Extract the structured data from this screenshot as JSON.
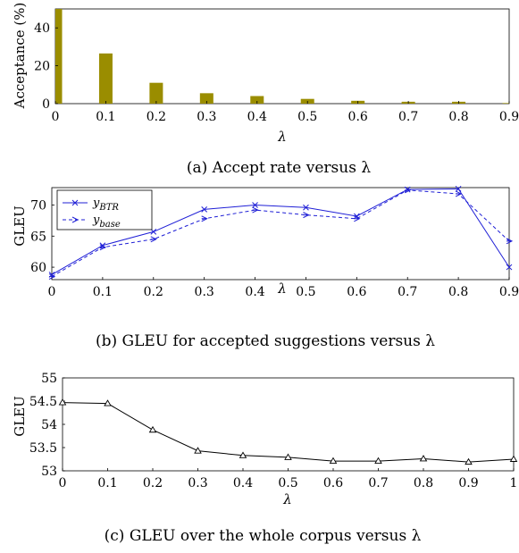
{
  "chart_data": [
    {
      "type": "bar",
      "caption": "(a) Accept rate versus λ",
      "xlabel": "λ",
      "ylabel": "Acceptance (%)",
      "categories": [
        "0",
        "0.1",
        "0.2",
        "0.3",
        "0.4",
        "0.5",
        "0.6",
        "0.7",
        "0.8",
        "0.9"
      ],
      "x": [
        0,
        0.1,
        0.2,
        0.3,
        0.4,
        0.5,
        0.6,
        0.7,
        0.8,
        0.9
      ],
      "values": [
        50,
        26.5,
        11,
        5.5,
        4,
        2.5,
        1.5,
        1.0,
        1.0,
        0.3
      ],
      "ylim": [
        0,
        50
      ],
      "yticks": [
        "0",
        "20",
        "40"
      ],
      "bar_color": "#9a8d00"
    },
    {
      "type": "line",
      "caption": "(b) GLEU for accepted suggestions versus λ",
      "xlabel": "λ",
      "ylabel": "GLEU",
      "x": [
        0,
        0.1,
        0.2,
        0.3,
        0.4,
        0.5,
        0.6,
        0.7,
        0.8,
        0.9
      ],
      "xticks": [
        "0",
        "0.1",
        "0.2",
        "0.3",
        "0.4",
        "0.5",
        "0.6",
        "0.7",
        "0.8",
        "0.9"
      ],
      "yticks": [
        "60",
        "65",
        "70"
      ],
      "ylim": [
        58,
        72.8
      ],
      "legend_position": "top-left",
      "series": [
        {
          "name": "y_BTR",
          "label_main": "y",
          "label_sub": "BTR",
          "style": "solid",
          "marker": "x",
          "color": "#1f1fd6",
          "values": [
            58.8,
            63.5,
            65.7,
            69.3,
            70.0,
            69.6,
            68.2,
            72.5,
            72.6,
            60.0
          ]
        },
        {
          "name": "y_base",
          "label_main": "y",
          "label_sub": "base",
          "style": "dashed",
          "marker": ">",
          "color": "#1f1fd6",
          "values": [
            58.5,
            63.2,
            64.5,
            67.8,
            69.2,
            68.4,
            67.8,
            72.4,
            71.8,
            64.2
          ]
        }
      ]
    },
    {
      "type": "line",
      "caption": "(c) GLEU over the whole corpus versus λ",
      "xlabel": "λ",
      "ylabel": "GLEU",
      "x": [
        0,
        0.1,
        0.2,
        0.3,
        0.4,
        0.5,
        0.6,
        0.7,
        0.8,
        0.9,
        1
      ],
      "xticks": [
        "0",
        "0.1",
        "0.2",
        "0.3",
        "0.4",
        "0.5",
        "0.6",
        "0.7",
        "0.8",
        "0.9",
        "1"
      ],
      "yticks": [
        "53",
        "53.5",
        "54",
        "54.5",
        "55"
      ],
      "ylim": [
        53,
        55
      ],
      "series": [
        {
          "marker": "triangle",
          "color": "#000000",
          "values": [
            54.47,
            54.45,
            53.88,
            53.43,
            53.33,
            53.29,
            53.21,
            53.21,
            53.26,
            53.19,
            53.25
          ]
        }
      ]
    }
  ]
}
